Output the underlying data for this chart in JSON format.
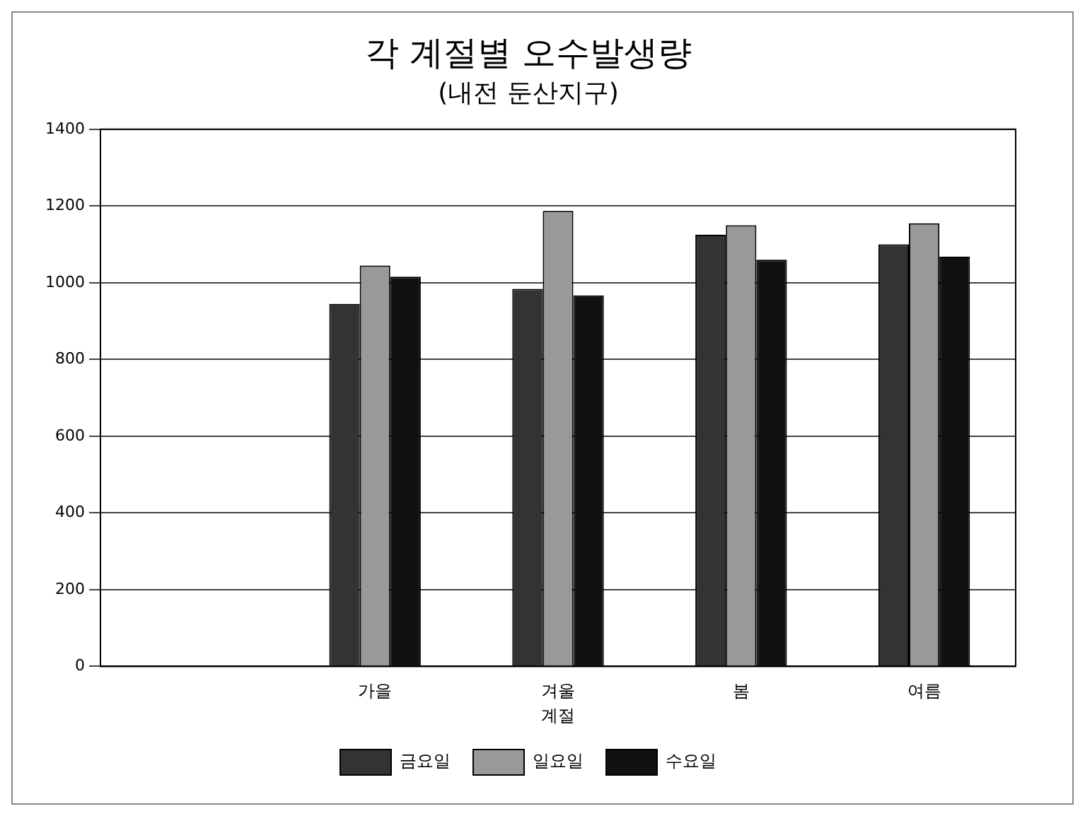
{
  "chart_data": {
    "type": "bar",
    "title": "각 계절별 오수발생량",
    "subtitle": "(내전 둔산지구)",
    "xlabel": "계절",
    "categories": [
      null,
      "가을",
      "겨울",
      "봄",
      "여름"
    ],
    "series": [
      {
        "name": "금요일",
        "color": "#333333",
        "values": [
          null,
          945,
          984,
          1125,
          1100
        ]
      },
      {
        "name": "일요일",
        "color": "#999999",
        "values": [
          null,
          1045,
          1187,
          1150,
          1155
        ]
      },
      {
        "name": "수요일",
        "color": "#111111",
        "values": [
          null,
          1016,
          967,
          1060,
          1068
        ]
      }
    ],
    "ylim": [
      0,
      1400
    ],
    "yticks": [
      0,
      200,
      400,
      600,
      800,
      1000,
      1200,
      1400
    ],
    "grid": "y",
    "legend": "bottom"
  }
}
